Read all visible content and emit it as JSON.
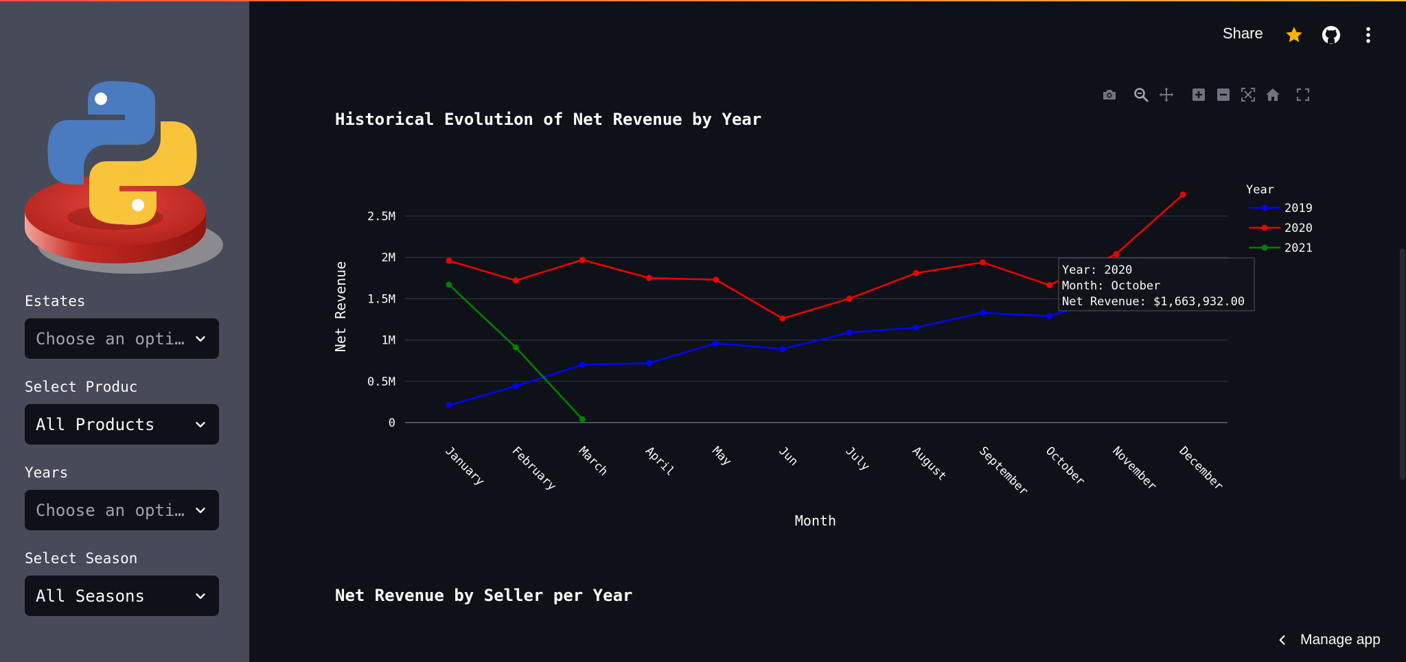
{
  "header": {
    "share_label": "Share"
  },
  "sidebar": {
    "filters": [
      {
        "label": "Estates",
        "value": "Choose an opti…",
        "is_placeholder": true
      },
      {
        "label": "Select Produc",
        "value": "All Products",
        "is_placeholder": false
      },
      {
        "label": "Years",
        "value": "Choose an opti…",
        "is_placeholder": true
      },
      {
        "label": "Select Season",
        "value": "All Seasons",
        "is_placeholder": false
      }
    ]
  },
  "main": {
    "chart_title": "Historical Evolution of Net Revenue by Year",
    "second_title": "Net Revenue by Seller per Year"
  },
  "tooltip": {
    "line1": "Year: 2020",
    "line2": "Month: October",
    "line3": "Net Revenue: $1,663,932.00"
  },
  "manage_app_label": "Manage app",
  "colors": {
    "2019": "#0000ff",
    "2020": "#ee0000",
    "2021": "#008000",
    "accent_star": "#f5b400"
  },
  "chart_data": {
    "type": "line",
    "title": "Historical Evolution of Net Revenue by Year",
    "xlabel": "Month",
    "ylabel": "Net Revenue",
    "legend_title": "Year",
    "legend_position": "top-right",
    "grid": true,
    "categories": [
      "January",
      "February",
      "March",
      "April",
      "May",
      "Jun",
      "July",
      "August",
      "September",
      "October",
      "November",
      "December"
    ],
    "yticks": [
      0,
      500000,
      1000000,
      1500000,
      2000000,
      2500000
    ],
    "ytick_labels": [
      "0",
      "0.5M",
      "1M",
      "1.5M",
      "2M",
      "2.5M"
    ],
    "ylim": [
      0,
      2500000
    ],
    "series": [
      {
        "name": "2019",
        "color": "#0000ff",
        "values": [
          210000,
          440000,
          700000,
          720000,
          960000,
          890000,
          1090000,
          1150000,
          1330000,
          1290000,
          1540000,
          null
        ]
      },
      {
        "name": "2020",
        "color": "#ee0000",
        "values": [
          1960000,
          1720000,
          1970000,
          1750000,
          1730000,
          1260000,
          1500000,
          1810000,
          1940000,
          1663932,
          2040000,
          2760000
        ]
      },
      {
        "name": "2021",
        "color": "#008000",
        "values": [
          1670000,
          910000,
          40000,
          null,
          null,
          null,
          null,
          null,
          null,
          null,
          null,
          null
        ]
      }
    ]
  }
}
